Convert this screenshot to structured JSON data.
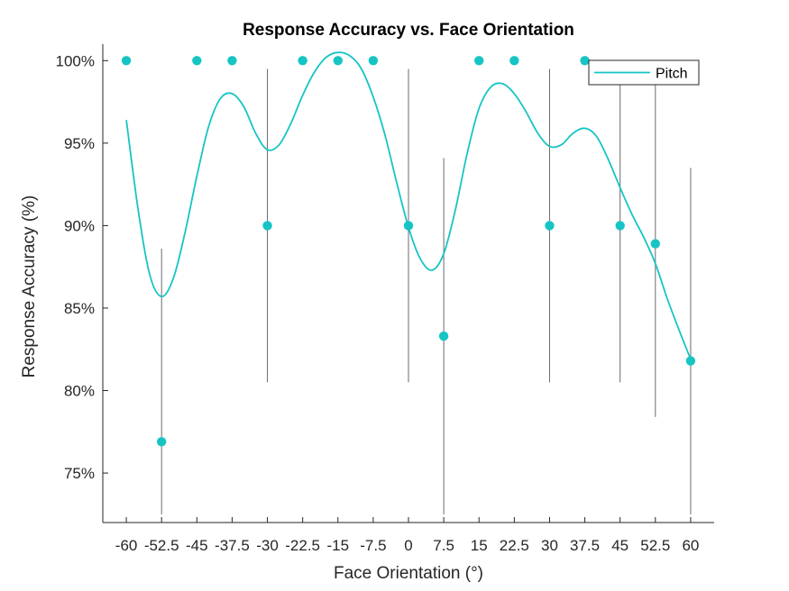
{
  "chart_data": {
    "type": "scatter",
    "title": "Response Accuracy vs. Face Orientation",
    "xlabel": "Face Orientation (°)",
    "ylabel": "Response Accuracy (%)",
    "x_categories": [
      "-60",
      "-52.5",
      "-45",
      "-37.5",
      "-30",
      "-22.5",
      "-15",
      "-7.5",
      "0",
      "7.5",
      "15",
      "22.5",
      "30",
      "37.5",
      "45",
      "52.5",
      "60"
    ],
    "x_values": [
      -60,
      -52.5,
      -45,
      -37.5,
      -30,
      -22.5,
      -15,
      -7.5,
      0,
      7.5,
      15,
      22.5,
      30,
      37.5,
      45,
      52.5,
      60
    ],
    "xlim": [
      -65,
      65
    ],
    "ylim": [
      72,
      101
    ],
    "y_ticks": [
      75,
      80,
      85,
      90,
      95,
      100
    ],
    "y_tick_labels": [
      "75%",
      "80%",
      "85%",
      "90%",
      "95%",
      "100%"
    ],
    "points": [
      100,
      76.9,
      100,
      100,
      90,
      100,
      100,
      100,
      90,
      83.3,
      100,
      100,
      90,
      100,
      90,
      88.9,
      81.8
    ],
    "error_bars": [
      {
        "x": -52.5,
        "low": 72.5,
        "high": 88.6
      },
      {
        "x": -30,
        "low": 80.5,
        "high": 99.5
      },
      {
        "x": 0,
        "low": 80.5,
        "high": 99.5
      },
      {
        "x": 7.5,
        "low": 72.5,
        "high": 94.1
      },
      {
        "x": 30,
        "low": 80.5,
        "high": 99.5
      },
      {
        "x": 45,
        "low": 80.5,
        "high": 99.5
      },
      {
        "x": 52.5,
        "low": 78.4,
        "high": 99.4
      },
      {
        "x": 60,
        "low": 72.5,
        "high": 93.5
      }
    ],
    "fit_curve": {
      "name": "Pitch",
      "x": [
        -60,
        -57.5,
        -55,
        -52.5,
        -50,
        -47.5,
        -45,
        -42.5,
        -40,
        -37.5,
        -35,
        -32.5,
        -30,
        -27.5,
        -25,
        -22.5,
        -20,
        -17.5,
        -15,
        -12.5,
        -10,
        -7.5,
        -5,
        -2.5,
        0,
        2.5,
        5,
        7.5,
        10,
        12.5,
        15,
        17.5,
        20,
        22.5,
        25,
        27.5,
        30,
        32.5,
        35,
        37.5,
        40,
        42.5,
        45,
        47.5,
        50,
        52.5,
        55,
        57.5,
        60
      ],
      "y": [
        96.4,
        91.0,
        87.0,
        85.7,
        86.8,
        89.6,
        93.0,
        96.0,
        97.7,
        98.0,
        97.2,
        95.6,
        94.6,
        94.9,
        96.2,
        97.9,
        99.3,
        100.2,
        100.5,
        100.3,
        99.5,
        97.8,
        95.5,
        92.6,
        89.9,
        88.0,
        87.3,
        88.3,
        91.0,
        94.4,
        97.1,
        98.4,
        98.6,
        98.0,
        96.9,
        95.6,
        94.8,
        94.9,
        95.6,
        95.9,
        95.4,
        94.0,
        92.3,
        90.7,
        89.3,
        87.7,
        85.6,
        83.7,
        81.9
      ]
    },
    "legend": {
      "position": "top-right",
      "entries": [
        "Pitch"
      ]
    },
    "colors": {
      "series": "#17c4c4",
      "error_bar": "#6b6b6b",
      "axis": "#262626",
      "background": "#ffffff"
    },
    "grid": false
  }
}
